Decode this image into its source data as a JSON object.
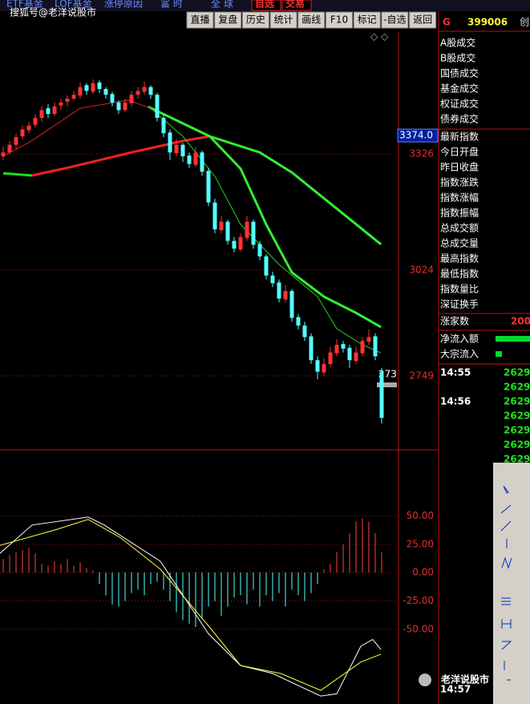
{
  "toolbar": {
    "top": [
      "ETF基金",
      "LOF基金",
      "涨停原因",
      "富 时",
      "全 球",
      "自选",
      "交易"
    ],
    "buttons": [
      "直播",
      "复盘",
      "历史",
      "统计",
      "画线",
      "F10",
      "标记",
      "-自选",
      "返回"
    ]
  },
  "watermark_top": "搜狐号@老洋说股市",
  "chart_data": {
    "type": "candlestick",
    "ylim": [
      2559,
      3643
    ],
    "yticks": [
      3326,
      3024,
      2749
    ],
    "last_price_tag": {
      "value": 3374,
      "label": "3374.0"
    },
    "cursor_label": "273",
    "candles": [
      [
        3320,
        3345,
        3310,
        3330
      ],
      [
        3330,
        3360,
        3325,
        3350
      ],
      [
        3350,
        3378,
        3340,
        3370
      ],
      [
        3372,
        3400,
        3365,
        3390
      ],
      [
        3388,
        3410,
        3380,
        3400
      ],
      [
        3402,
        3430,
        3395,
        3420
      ],
      [
        3420,
        3450,
        3410,
        3440
      ],
      [
        3445,
        3455,
        3420,
        3430
      ],
      [
        3430,
        3460,
        3425,
        3450
      ],
      [
        3452,
        3470,
        3440,
        3460
      ],
      [
        3462,
        3478,
        3450,
        3470
      ],
      [
        3470,
        3490,
        3465,
        3480
      ],
      [
        3478,
        3512,
        3470,
        3500
      ],
      [
        3505,
        3510,
        3480,
        3490
      ],
      [
        3488,
        3520,
        3482,
        3510
      ],
      [
        3512,
        3518,
        3485,
        3495
      ],
      [
        3495,
        3500,
        3470,
        3480
      ],
      [
        3482,
        3488,
        3450,
        3460
      ],
      [
        3460,
        3465,
        3430,
        3440
      ],
      [
        3440,
        3470,
        3435,
        3460
      ],
      [
        3458,
        3490,
        3450,
        3480
      ],
      [
        3480,
        3500,
        3470,
        3490
      ],
      [
        3488,
        3515,
        3480,
        3500
      ],
      [
        3500,
        3505,
        3470,
        3480
      ],
      [
        3480,
        3485,
        3410,
        3420
      ],
      [
        3420,
        3430,
        3370,
        3380
      ],
      [
        3382,
        3390,
        3310,
        3330
      ],
      [
        3328,
        3365,
        3320,
        3350
      ],
      [
        3350,
        3355,
        3305,
        3320
      ],
      [
        3322,
        3330,
        3290,
        3300
      ],
      [
        3298,
        3345,
        3292,
        3330
      ],
      [
        3330,
        3335,
        3270,
        3280
      ],
      [
        3282,
        3290,
        3190,
        3200
      ],
      [
        3200,
        3210,
        3120,
        3130
      ],
      [
        3128,
        3165,
        3120,
        3150
      ],
      [
        3150,
        3155,
        3090,
        3100
      ],
      [
        3100,
        3110,
        3070,
        3080
      ],
      [
        3078,
        3120,
        3072,
        3110
      ],
      [
        3108,
        3165,
        3100,
        3150
      ],
      [
        3150,
        3155,
        3080,
        3090
      ],
      [
        3092,
        3100,
        3050,
        3060
      ],
      [
        3060,
        3065,
        3000,
        3010
      ],
      [
        3010,
        3020,
        2980,
        2990
      ],
      [
        2992,
        3000,
        2940,
        2950
      ],
      [
        2948,
        2985,
        2940,
        2970
      ],
      [
        2970,
        2975,
        2890,
        2900
      ],
      [
        2902,
        2910,
        2870,
        2880
      ],
      [
        2880,
        2890,
        2840,
        2850
      ],
      [
        2852,
        2860,
        2780,
        2790
      ],
      [
        2790,
        2800,
        2740,
        2760
      ],
      [
        2758,
        2795,
        2750,
        2780
      ],
      [
        2780,
        2825,
        2772,
        2810
      ],
      [
        2808,
        2845,
        2800,
        2830
      ],
      [
        2832,
        2840,
        2810,
        2820
      ],
      [
        2822,
        2830,
        2770,
        2790
      ],
      [
        2788,
        2825,
        2780,
        2810
      ],
      [
        2808,
        2850,
        2800,
        2840
      ],
      [
        2838,
        2870,
        2830,
        2850
      ],
      [
        2852,
        2860,
        2790,
        2800
      ],
      [
        2760,
        2770,
        2625,
        2640
      ]
    ],
    "up_color": "#ff3232",
    "down_color": "#54ffff",
    "series": [
      {
        "color": "#22dd22",
        "width": 3,
        "x": [
          0,
          4.5
        ],
        "values": [
          3276,
          3270
        ]
      },
      {
        "color": "#ff2020",
        "width": 3,
        "x": [
          4.5,
          10,
          20,
          28,
          32.2
        ],
        "values": [
          3270,
          3290,
          3330,
          3360,
          3372
        ]
      },
      {
        "color": "#33ee33",
        "width": 3,
        "x": [
          32.2,
          37,
          41,
          45,
          50,
          55,
          58.9
        ],
        "values": [
          3372,
          3288,
          3143,
          3018,
          2955,
          2913,
          2876
        ]
      },
      {
        "color": "#33ee33",
        "width": 3,
        "x": [
          22.6,
          32.2,
          40,
          45,
          52,
          58.9
        ],
        "values": [
          3449,
          3372,
          3330,
          3278,
          3184,
          3091
        ]
      },
      {
        "color": "#e02020",
        "width": 1,
        "x": [
          0,
          4.5,
          12,
          19.5,
          23
        ],
        "values": [
          3320,
          3361,
          3445,
          3466,
          3445
        ]
      },
      {
        "color": "#22cc22",
        "width": 1,
        "x": [
          23,
          28,
          33,
          37,
          43,
          49,
          52,
          56,
          58.9
        ],
        "values": [
          3445,
          3372,
          3268,
          3143,
          3039,
          2955,
          2872,
          2830,
          2809
        ]
      }
    ],
    "macd": {
      "ylim": [
        -116,
        107
      ],
      "yticks": [
        {
          "value": 50,
          "label": "50.00"
        },
        {
          "value": 25,
          "label": "25.00"
        },
        {
          "value": 0,
          "label": "0.00"
        },
        {
          "value": -25,
          "label": "-25.00"
        },
        {
          "value": -50,
          "label": "-50.00"
        }
      ],
      "hist": [
        12,
        16,
        18,
        20,
        22,
        17,
        8,
        6,
        10,
        8,
        12,
        6,
        9,
        4,
        2,
        -10,
        -20,
        -28,
        -30,
        -25,
        -18,
        -15,
        -20,
        -10,
        -8,
        -15,
        -25,
        -35,
        -42,
        -45,
        -48,
        -40,
        -30,
        -25,
        -38,
        -30,
        -22,
        -20,
        -28,
        -15,
        -30,
        -20,
        -25,
        -18,
        -30,
        -15,
        -20,
        -25,
        -18,
        -10,
        3,
        8,
        18,
        25,
        35,
        45,
        48,
        45,
        35,
        18
      ],
      "pos_color": "#ff4040",
      "neg_color": "#54ffff",
      "lines": [
        {
          "color": "#ffffff",
          "x": [
            -0.5,
            4.5,
            13.25,
            15.75,
            24.5,
            32,
            37,
            42,
            49.5,
            52,
            55.75,
            57.6,
            58.9
          ],
          "values": [
            17,
            42,
            49,
            42,
            10,
            -54,
            -82,
            -89,
            -109,
            -107,
            -65,
            -59,
            -68
          ]
        },
        {
          "color": "#ffff40",
          "x": [
            -0.5,
            8.25,
            13.25,
            18.25,
            24.5,
            32,
            37,
            43.25,
            49.5,
            55.75,
            58.9
          ],
          "values": [
            24,
            38,
            47,
            31,
            3,
            -47,
            -82,
            -89,
            -104,
            -79,
            -72
          ]
        }
      ]
    }
  },
  "right_panel": {
    "prefix": "G",
    "code": "399006",
    "name": "创业",
    "labels_a": [
      "A股成交",
      "B股成交",
      "国债成交",
      "基金成交",
      "权证成交",
      "债券成交"
    ],
    "labels_b": [
      "最新指数",
      "今日开盘",
      "昨日收盘",
      "指数涨跌",
      "指数涨幅",
      "指数振幅",
      "总成交额",
      "总成交量",
      "最高指数",
      "最低指数",
      "指数量比",
      "深证换手"
    ],
    "breadth_label": "涨家数",
    "breadth_value": 200,
    "flow": [
      "净流入额",
      "大宗流入"
    ],
    "ticks": [
      {
        "time": "14:55",
        "values": [
          2629,
          2629
        ]
      },
      {
        "time": "14:56",
        "values": [
          2629,
          2629,
          2629,
          2629,
          2629
        ]
      }
    ],
    "last_time": "14:57"
  },
  "watermark_bottom": "老洋说股市"
}
